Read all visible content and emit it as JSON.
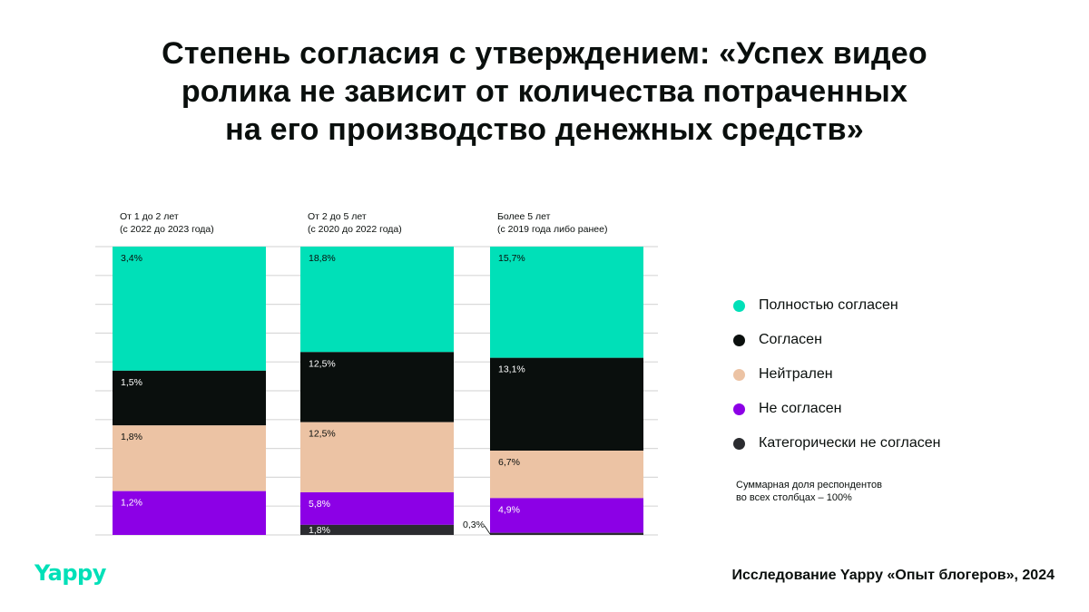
{
  "title_lines": [
    "Степень согласия с утверждением: «Успех видео",
    "ролика не зависит от количества потраченных",
    "на его производство денежных средств»"
  ],
  "chart_data": {
    "type": "bar",
    "stacked": true,
    "normalized_per_column": true,
    "categories": [
      [
        "От 1 до 2 лет",
        "(с 2022 до 2023 года)"
      ],
      [
        "От 2 до 5 лет",
        "(с 2020 до 2022 года)"
      ],
      [
        "Более 5 лет",
        "(с 2019 года либо ранее)"
      ]
    ],
    "series": [
      {
        "name": "Полностью согласен",
        "color": "#00e0b8",
        "labels": [
          "3,4%",
          "18,8%",
          "15,7%"
        ],
        "values": [
          3.4,
          18.8,
          15.7
        ],
        "label_color": "#0a0f0d"
      },
      {
        "name": "Согласен",
        "color": "#0a0f0d",
        "labels": [
          "1,5%",
          "12,5%",
          "13,1%"
        ],
        "values": [
          1.5,
          12.5,
          13.1
        ],
        "label_color": "#ffffff"
      },
      {
        "name": "Нейтрален",
        "color": "#ecc3a4",
        "labels": [
          "1,8%",
          "12,5%",
          "6,7%"
        ],
        "values": [
          1.8,
          12.5,
          6.7
        ],
        "label_color": "#0a0f0d"
      },
      {
        "name": "Не согласен",
        "color": "#8c00e6",
        "labels": [
          "1,2%",
          "5,8%",
          "4,9%"
        ],
        "values": [
          1.2,
          5.8,
          4.9
        ],
        "label_color": "#ffffff"
      },
      {
        "name": "Категорически не согласен",
        "color": "#2b2c30",
        "labels": [
          null,
          "1,8%",
          "0,3%"
        ],
        "values": [
          0,
          1.8,
          0.3
        ],
        "label_color": "#ffffff"
      }
    ],
    "grid": true,
    "legend_position": "right",
    "note": "Суммарная доля респондентов во всех столбцах – 100%"
  },
  "legend_note_lines": [
    "Суммарная доля респондентов",
    "во всех столбцах – 100%"
  ],
  "logo": "Yappy",
  "source": "Исследование Yappy «Опыт блогеров», 2024"
}
